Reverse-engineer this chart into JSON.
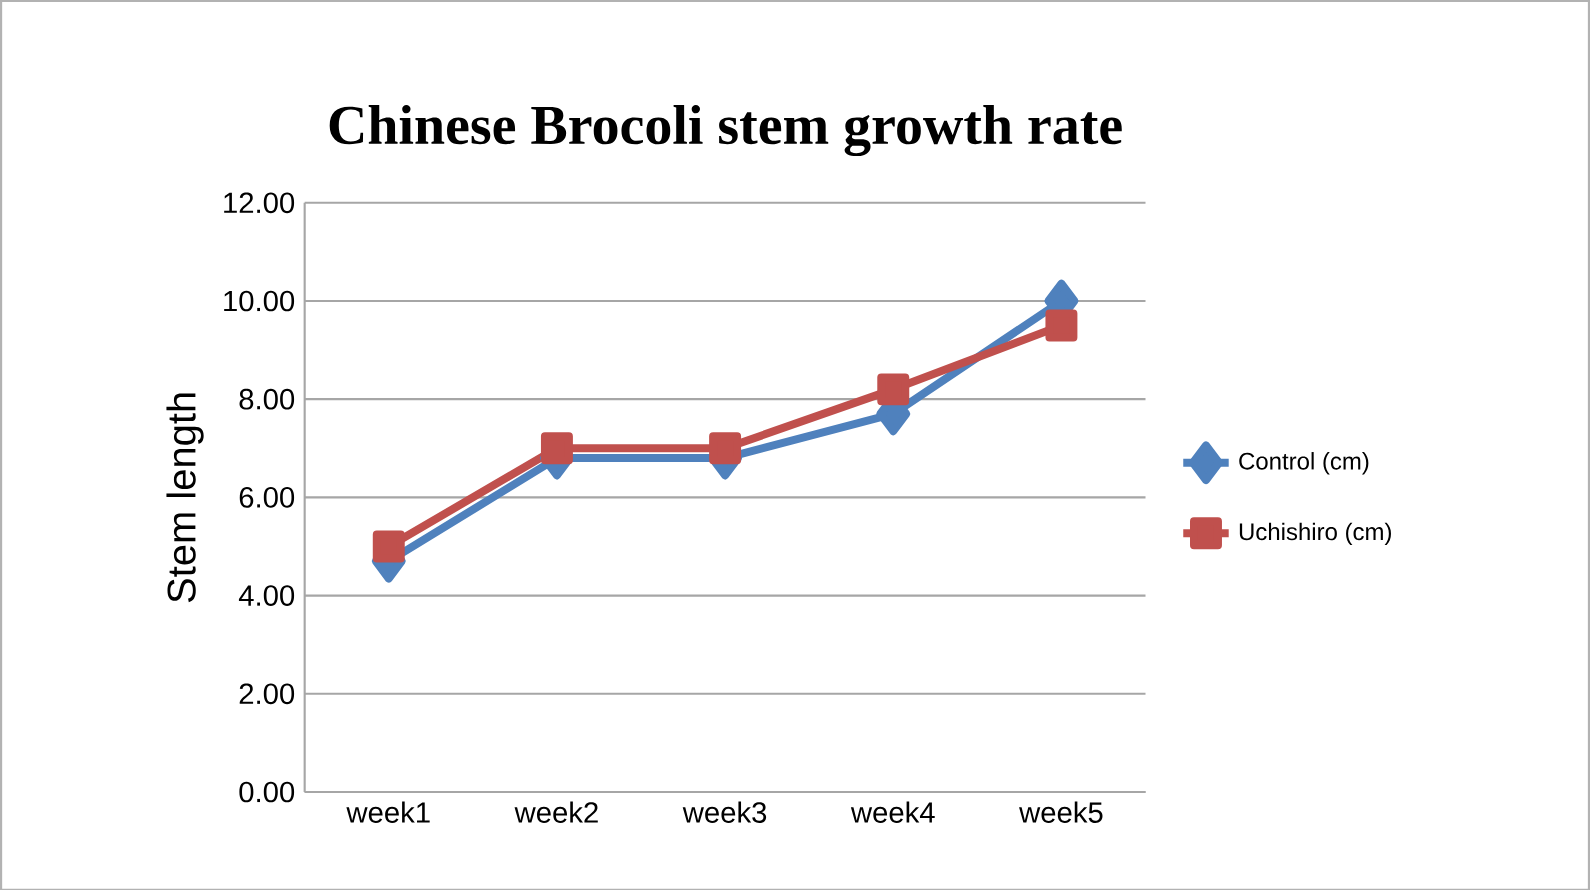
{
  "chart_data": {
    "type": "line",
    "title": "Chinese Brocoli stem growth rate",
    "ylabel": "Stem length",
    "categories": [
      "week1",
      "week2",
      "week3",
      "week4",
      "week5"
    ],
    "series": [
      {
        "name": "Control (cm)",
        "color": "#4f81bd",
        "values": [
          4.7,
          6.8,
          6.8,
          7.7,
          10.0
        ],
        "marker": "diamond"
      },
      {
        "name": "Uchishiro (cm)",
        "color": "#c0504d",
        "values": [
          5.0,
          7.0,
          7.0,
          8.2,
          9.5
        ],
        "marker": "square"
      }
    ],
    "ylim": [
      0,
      12
    ],
    "yticks": [
      {
        "value": 0,
        "label": "0.00"
      },
      {
        "value": 2,
        "label": "2.00"
      },
      {
        "value": 4,
        "label": "4.00"
      },
      {
        "value": 6,
        "label": "6.00"
      },
      {
        "value": 8,
        "label": "8.00"
      },
      {
        "value": 10,
        "label": "10.00"
      },
      {
        "value": 12,
        "label": "12.00"
      }
    ],
    "grid": "y",
    "legend": "right"
  }
}
